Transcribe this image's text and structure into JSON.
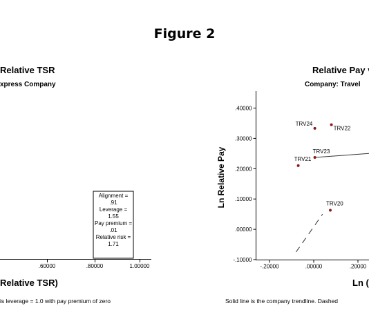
{
  "figure_title": "Figure 2",
  "colors": {
    "point": "#8b1a1a",
    "axis": "#000000",
    "line": "#333333"
  },
  "chart_data": [
    {
      "type": "scatter",
      "title": "Relative TSR",
      "subtitle": "xpress Company",
      "xlabel": "Relative TSR)",
      "x_ticks": [
        ".60000",
        ".80000",
        "1.00000"
      ],
      "note": "is leverage = 1.0 with pay premium of zero",
      "annotation": [
        "Alignment =",
        ".91",
        "Leverage =",
        "1.55",
        "Pay premium =",
        ".01",
        "Relative risk =",
        "1.71"
      ]
    },
    {
      "type": "scatter",
      "title": "Relative Pay v",
      "subtitle": "Company: Travel",
      "ylabel": "Ln Relative Pay",
      "xlabel": "Ln (",
      "y_ticks": [
        ".40000",
        ".30000",
        ".20000",
        ".10000",
        ".00000",
        "-.10000"
      ],
      "x_ticks": [
        "-.20000",
        ".00000",
        ".20000"
      ],
      "ylim": [
        -0.1,
        0.45
      ],
      "xlim": [
        -0.25,
        0.3
      ],
      "points": [
        {
          "label": "TRV24",
          "x": 0.005,
          "y": 0.333
        },
        {
          "label": "TRV22",
          "x": 0.08,
          "y": 0.345
        },
        {
          "label": "TRV23",
          "x": 0.005,
          "y": 0.237
        },
        {
          "label": "TRV21",
          "x": -0.07,
          "y": 0.21
        },
        {
          "label": "TRV20",
          "x": 0.075,
          "y": 0.063
        }
      ],
      "trendline": [
        {
          "x": 0.005,
          "y": 0.237
        },
        {
          "x": 0.3,
          "y": 0.253
        }
      ],
      "dashed_line": [
        {
          "x": -0.08,
          "y": -0.075
        },
        {
          "x": 0.04,
          "y": 0.05
        }
      ],
      "note": "Solid line is the company trendline.  Dashed"
    }
  ]
}
